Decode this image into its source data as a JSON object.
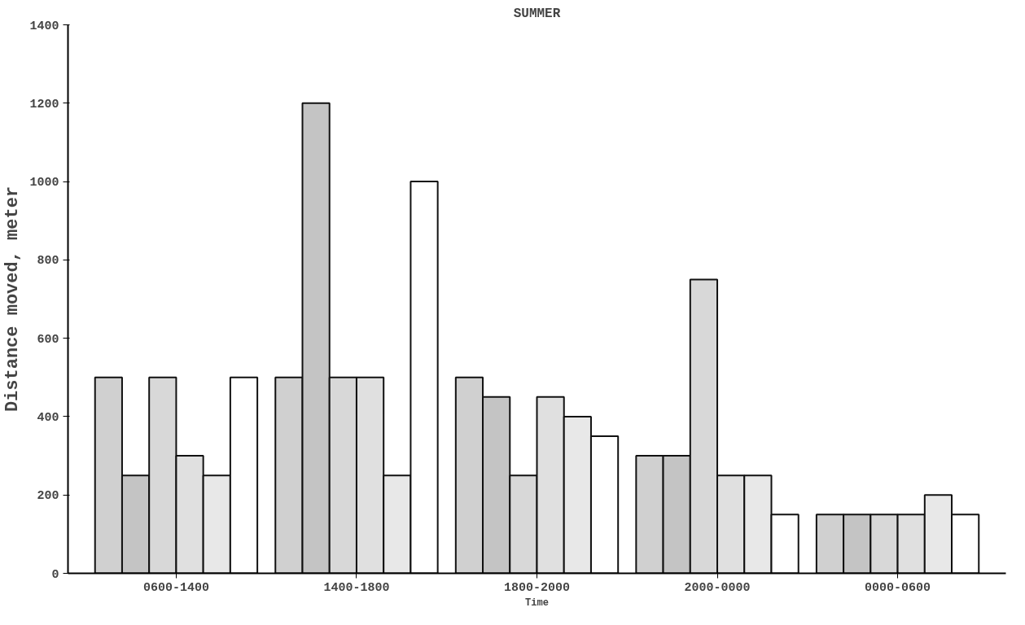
{
  "chart_data": {
    "type": "bar",
    "title": "SUMMER",
    "xlabel": "Time",
    "ylabel": "Distance moved, meter",
    "categories": [
      "0600-1400",
      "1400-1800",
      "1800-2000",
      "2000-0000",
      "0000-0600"
    ],
    "series": [
      {
        "color": "#d0d0d0",
        "values": [
          500,
          500,
          500,
          300,
          150
        ]
      },
      {
        "color": "#c4c4c4",
        "values": [
          250,
          1200,
          450,
          300,
          150
        ]
      },
      {
        "color": "#d8d8d8",
        "values": [
          500,
          500,
          250,
          750,
          150
        ]
      },
      {
        "color": "#e0e0e0",
        "values": [
          300,
          500,
          450,
          250,
          150
        ]
      },
      {
        "color": "#e8e8e8",
        "values": [
          250,
          250,
          400,
          250,
          200
        ]
      },
      {
        "color": "#ffffff",
        "values": [
          500,
          1000,
          350,
          150,
          150
        ]
      }
    ],
    "ylim": [
      0,
      1400
    ],
    "yticks": [
      0,
      200,
      400,
      600,
      800,
      1000,
      1200,
      1400
    ],
    "grid": false
  }
}
